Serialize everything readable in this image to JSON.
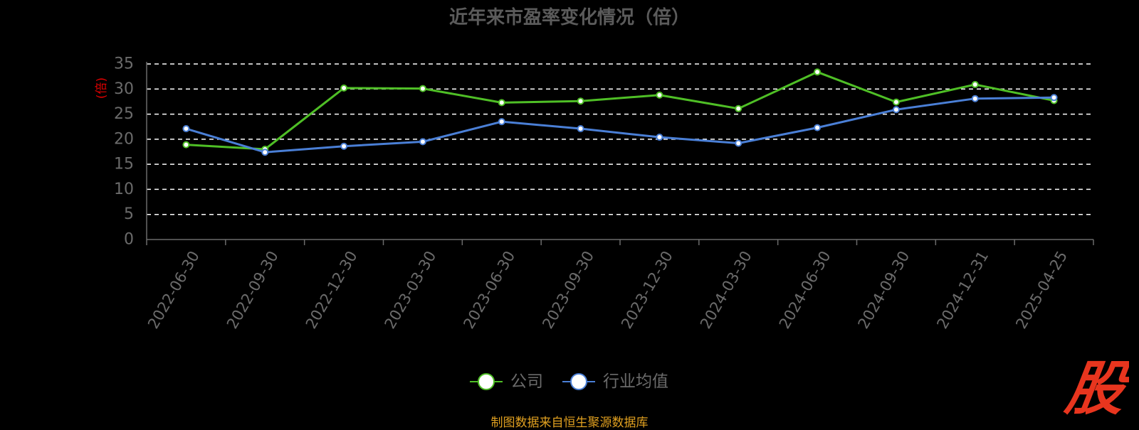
{
  "colors": {
    "background": "#000000",
    "title": "#5b5b5b",
    "axis_text": "#6b6b6b",
    "ylabel": "#e00000",
    "grid": "#ffffff",
    "company": "#4fbf26",
    "industry": "#4a7fd6",
    "source": "#e0a020",
    "logo": "#e8351e"
  },
  "chart_data": {
    "type": "line",
    "title": "近年来市盈率变化情况（倍）",
    "xlabel": "",
    "ylabel": "(倍)",
    "x": [
      "2022-06-30",
      "2022-09-30",
      "2022-12-30",
      "2023-03-30",
      "2023-06-30",
      "2023-09-30",
      "2023-12-30",
      "2024-03-30",
      "2024-06-30",
      "2024-09-30",
      "2024-12-31",
      "2025-04-25"
    ],
    "series": [
      {
        "name": "公司",
        "values": [
          18.9,
          18.0,
          30.2,
          30.1,
          27.3,
          27.6,
          28.8,
          26.1,
          33.4,
          27.4,
          30.9,
          27.7
        ]
      },
      {
        "name": "行业均值",
        "values": [
          22.1,
          17.4,
          18.6,
          19.5,
          23.5,
          22.1,
          20.4,
          19.2,
          22.3,
          25.9,
          28.1,
          28.3
        ]
      }
    ],
    "ylim": [
      0,
      35
    ],
    "yticks": [
      0,
      5,
      10,
      15,
      20,
      25,
      30,
      35
    ],
    "grid": true,
    "grid_style": "dashed",
    "legend_position": "bottom-center"
  },
  "footer": {
    "source": "制图数据来自恒生聚源数据库"
  },
  "logo": {
    "text": "股",
    "icon": "brand-logo-icon"
  }
}
